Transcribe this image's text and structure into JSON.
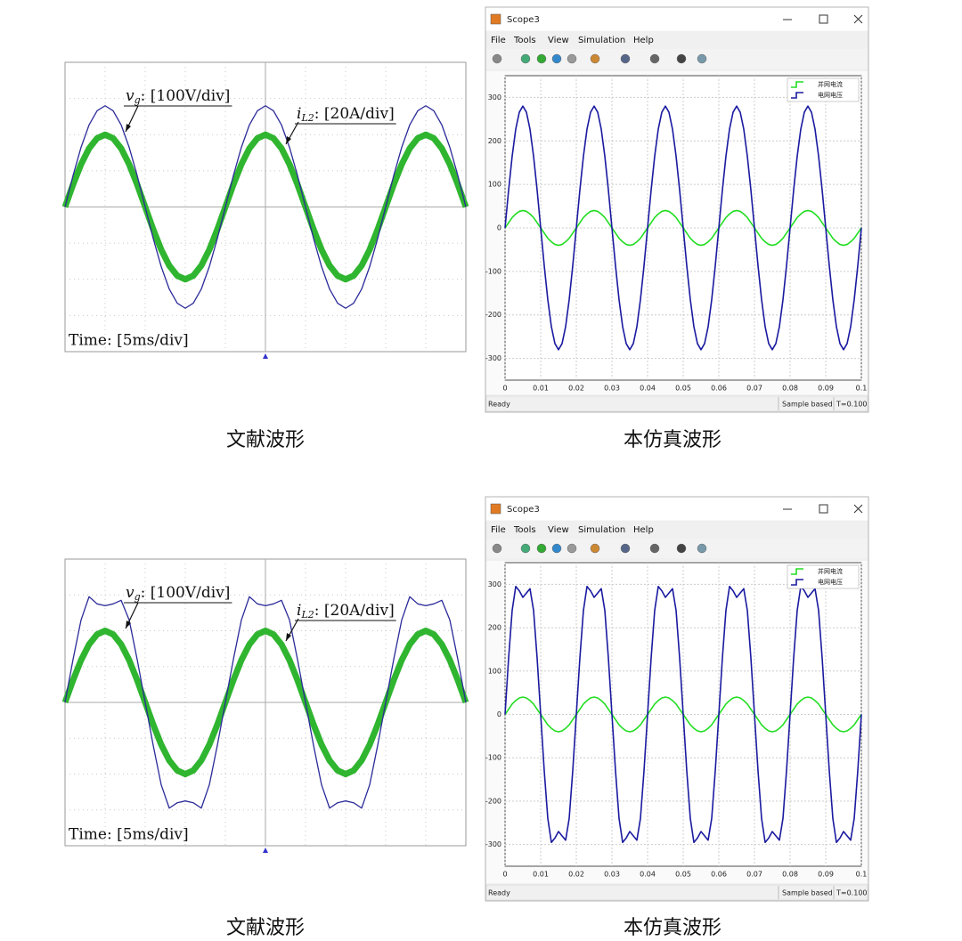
{
  "captions": [
    "文献波形",
    "本仿真波形",
    "文献波形",
    "本仿真波形"
  ],
  "chart_data": [
    {
      "type": "line",
      "annotations": [
        {
          "var": "v",
          "sub": "g",
          "text": ": [100V/div]"
        },
        {
          "var": "i",
          "sub": "L2",
          "text": ": [20A/div]"
        }
      ],
      "time_label": "Time: [5ms/div]",
      "x": [
        0,
        0.2,
        0.4,
        0.6,
        0.8,
        1,
        1.2,
        1.4,
        1.6,
        1.8,
        2,
        2.2,
        2.4,
        2.6,
        2.8,
        3,
        3.2,
        3.4,
        3.6,
        3.8,
        4,
        4.2,
        4.4,
        4.6,
        4.8,
        5,
        5.2,
        5.4,
        5.6,
        5.8,
        6,
        6.2,
        6.4,
        6.6,
        6.8,
        7,
        7.2,
        7.4,
        7.6,
        7.8,
        8,
        8.2,
        8.4,
        8.6,
        8.8,
        9,
        9.2,
        9.4,
        9.6,
        9.8,
        10
      ],
      "xlim": [
        0,
        10
      ],
      "ylim": [
        -4,
        4
      ],
      "grid": true,
      "series": [
        {
          "color": "#2b2b9a",
          "values": [
            0,
            0.87,
            1.65,
            2.27,
            2.66,
            2.8,
            2.66,
            2.27,
            1.65,
            0.87,
            0,
            -0.87,
            -1.65,
            -2.27,
            -2.66,
            -2.8,
            -2.66,
            -2.27,
            -1.65,
            -0.87,
            0,
            0.87,
            1.65,
            2.27,
            2.66,
            2.8,
            2.66,
            2.27,
            1.65,
            0.87,
            0,
            -0.87,
            -1.65,
            -2.27,
            -2.66,
            -2.8,
            -2.66,
            -2.27,
            -1.65,
            -0.87,
            0,
            0.87,
            1.65,
            2.27,
            2.66,
            2.8,
            2.66,
            2.27,
            1.65,
            0.87,
            0
          ]
        },
        {
          "color": "#2fb52f",
          "values": [
            0,
            0.62,
            1.18,
            1.62,
            1.9,
            2,
            1.9,
            1.62,
            1.18,
            0.62,
            0,
            -0.62,
            -1.18,
            -1.62,
            -1.9,
            -2,
            -1.9,
            -1.62,
            -1.18,
            -0.62,
            0,
            0.62,
            1.18,
            1.62,
            1.9,
            2,
            1.9,
            1.62,
            1.18,
            0.62,
            0,
            -0.62,
            -1.18,
            -1.62,
            -1.9,
            -2,
            -1.9,
            -1.62,
            -1.18,
            -0.62,
            0,
            0.62,
            1.18,
            1.62,
            1.9,
            2,
            1.9,
            1.62,
            1.18,
            0.62,
            0
          ]
        }
      ]
    },
    {
      "type": "line",
      "window": {
        "title": "Scope3",
        "menu": [
          "File",
          "Tools",
          "View",
          "Simulation",
          "Help"
        ],
        "status": "Ready",
        "mode": "Sample based",
        "time": "T=0.100"
      },
      "x": [
        0,
        0.001,
        0.002,
        0.003,
        0.004,
        0.005,
        0.006,
        0.007,
        0.008,
        0.009,
        0.01,
        0.011,
        0.012,
        0.013,
        0.014,
        0.015,
        0.016,
        0.017,
        0.018,
        0.019,
        0.02,
        0.021,
        0.022,
        0.023,
        0.024,
        0.025,
        0.026,
        0.027,
        0.028,
        0.029,
        0.03,
        0.031,
        0.032,
        0.033,
        0.034,
        0.035,
        0.036,
        0.037,
        0.038,
        0.039,
        0.04,
        0.041,
        0.042,
        0.043,
        0.044,
        0.045,
        0.046,
        0.047,
        0.048,
        0.049,
        0.05,
        0.051,
        0.052,
        0.053,
        0.054,
        0.055,
        0.056,
        0.057,
        0.058,
        0.059,
        0.06,
        0.061,
        0.062,
        0.063,
        0.064,
        0.065,
        0.066,
        0.067,
        0.068,
        0.069,
        0.07,
        0.071,
        0.072,
        0.073,
        0.074,
        0.075,
        0.076,
        0.077,
        0.078,
        0.079,
        0.08,
        0.081,
        0.082,
        0.083,
        0.084,
        0.085,
        0.086,
        0.087,
        0.088,
        0.089,
        0.09,
        0.091,
        0.092,
        0.093,
        0.094,
        0.095,
        0.096,
        0.097,
        0.098,
        0.099,
        0.1
      ],
      "xlim": [
        0,
        0.1
      ],
      "ylim": [
        -350,
        350
      ],
      "xticks": [
        0,
        0.01,
        0.02,
        0.03,
        0.04,
        0.05,
        0.06,
        0.07,
        0.08,
        0.09,
        0.1
      ],
      "yticks": [
        -300,
        -200,
        -100,
        0,
        100,
        200,
        300
      ],
      "grid": true,
      "legend": "upper right",
      "series": [
        {
          "name": "并网电流",
          "color": "#22dd22",
          "values": [
            0,
            12,
            24,
            32,
            38,
            40,
            38,
            32,
            24,
            12,
            0,
            -12,
            -24,
            -32,
            -38,
            -40,
            -38,
            -32,
            -24,
            -12,
            0,
            12,
            24,
            32,
            38,
            40,
            38,
            32,
            24,
            12,
            0,
            -12,
            -24,
            -32,
            -38,
            -40,
            -38,
            -32,
            -24,
            -12,
            0,
            12,
            24,
            32,
            38,
            40,
            38,
            32,
            24,
            12,
            0,
            -12,
            -24,
            -32,
            -38,
            -40,
            -38,
            -32,
            -24,
            -12,
            0,
            12,
            24,
            32,
            38,
            40,
            38,
            32,
            24,
            12,
            0,
            -12,
            -24,
            -32,
            -38,
            -40,
            -38,
            -32,
            -24,
            -12,
            0,
            12,
            24,
            32,
            38,
            40,
            38,
            32,
            24,
            12,
            0,
            -12,
            -24,
            -32,
            -38,
            -40,
            -38,
            -32,
            -24,
            -12,
            0
          ]
        },
        {
          "name": "电网电压",
          "color": "#1a1aa0",
          "values": [
            0,
            87,
            165,
            227,
            266,
            280,
            266,
            227,
            165,
            87,
            0,
            -87,
            -165,
            -227,
            -266,
            -280,
            -266,
            -227,
            -165,
            -87,
            0,
            87,
            165,
            227,
            266,
            280,
            266,
            227,
            165,
            87,
            0,
            -87,
            -165,
            -227,
            -266,
            -280,
            -266,
            -227,
            -165,
            -87,
            0,
            87,
            165,
            227,
            266,
            280,
            266,
            227,
            165,
            87,
            0,
            -87,
            -165,
            -227,
            -266,
            -280,
            -266,
            -227,
            -165,
            -87,
            0,
            87,
            165,
            227,
            266,
            280,
            266,
            227,
            165,
            87,
            0,
            -87,
            -165,
            -227,
            -266,
            -280,
            -266,
            -227,
            -165,
            -87,
            0,
            87,
            165,
            227,
            266,
            280,
            266,
            227,
            165,
            87,
            0,
            -87,
            -165,
            -227,
            -266,
            -280,
            -266,
            -227,
            -165,
            -87,
            0
          ]
        }
      ]
    },
    {
      "type": "line",
      "annotations": [
        {
          "var": "v",
          "sub": "g",
          "text": ": [100V/div]"
        },
        {
          "var": "i",
          "sub": "L2",
          "text": ": [20A/div]"
        }
      ],
      "time_label": "Time: [5ms/div]",
      "x": [
        0,
        0.2,
        0.4,
        0.6,
        0.8,
        1,
        1.2,
        1.4,
        1.6,
        1.8,
        2,
        2.2,
        2.4,
        2.6,
        2.8,
        3,
        3.2,
        3.4,
        3.6,
        3.8,
        4,
        4.2,
        4.4,
        4.6,
        4.8,
        5,
        5.2,
        5.4,
        5.6,
        5.8,
        6,
        6.2,
        6.4,
        6.6,
        6.8,
        7,
        7.2,
        7.4,
        7.6,
        7.8,
        8,
        8.2,
        8.4,
        8.6,
        8.8,
        9,
        9.2,
        9.4,
        9.6,
        9.8,
        10
      ],
      "xlim": [
        0,
        10
      ],
      "ylim": [
        -4,
        4
      ],
      "grid": true,
      "series": [
        {
          "color": "#2b2b9a",
          "values": [
            0,
            1.2,
            2.3,
            2.95,
            2.75,
            2.7,
            2.75,
            2.85,
            2.3,
            1.2,
            0,
            -1.2,
            -2.3,
            -2.95,
            -2.8,
            -2.75,
            -2.8,
            -2.95,
            -2.3,
            -1.2,
            0,
            1.2,
            2.3,
            2.95,
            2.75,
            2.7,
            2.75,
            2.85,
            2.3,
            1.2,
            0,
            -1.2,
            -2.3,
            -2.95,
            -2.8,
            -2.75,
            -2.8,
            -2.95,
            -2.3,
            -1.2,
            0,
            1.2,
            2.3,
            2.95,
            2.75,
            2.7,
            2.75,
            2.85,
            2.3,
            1.2,
            0
          ]
        },
        {
          "color": "#2fb52f",
          "values": [
            0,
            0.62,
            1.18,
            1.62,
            1.9,
            2,
            1.9,
            1.62,
            1.18,
            0.62,
            0,
            -0.62,
            -1.18,
            -1.62,
            -1.9,
            -2,
            -1.9,
            -1.62,
            -1.18,
            -0.62,
            0,
            0.62,
            1.18,
            1.62,
            1.9,
            2,
            1.9,
            1.62,
            1.18,
            0.62,
            0,
            -0.62,
            -1.18,
            -1.62,
            -1.9,
            -2,
            -1.9,
            -1.62,
            -1.18,
            -0.62,
            0,
            0.62,
            1.18,
            1.62,
            1.9,
            2,
            1.9,
            1.62,
            1.18,
            0.62,
            0
          ]
        }
      ]
    },
    {
      "type": "line",
      "window": {
        "title": "Scope3",
        "menu": [
          "File",
          "Tools",
          "View",
          "Simulation",
          "Help"
        ],
        "status": "Ready",
        "mode": "Sample based",
        "time": "T=0.100"
      },
      "x": [
        0,
        0.001,
        0.002,
        0.003,
        0.004,
        0.005,
        0.006,
        0.007,
        0.008,
        0.009,
        0.01,
        0.011,
        0.012,
        0.013,
        0.014,
        0.015,
        0.016,
        0.017,
        0.018,
        0.019,
        0.02,
        0.021,
        0.022,
        0.023,
        0.024,
        0.025,
        0.026,
        0.027,
        0.028,
        0.029,
        0.03,
        0.031,
        0.032,
        0.033,
        0.034,
        0.035,
        0.036,
        0.037,
        0.038,
        0.039,
        0.04,
        0.041,
        0.042,
        0.043,
        0.044,
        0.045,
        0.046,
        0.047,
        0.048,
        0.049,
        0.05,
        0.051,
        0.052,
        0.053,
        0.054,
        0.055,
        0.056,
        0.057,
        0.058,
        0.059,
        0.06,
        0.061,
        0.062,
        0.063,
        0.064,
        0.065,
        0.066,
        0.067,
        0.068,
        0.069,
        0.07,
        0.071,
        0.072,
        0.073,
        0.074,
        0.075,
        0.076,
        0.077,
        0.078,
        0.079,
        0.08,
        0.081,
        0.082,
        0.083,
        0.084,
        0.085,
        0.086,
        0.087,
        0.088,
        0.089,
        0.09,
        0.091,
        0.092,
        0.093,
        0.094,
        0.095,
        0.096,
        0.097,
        0.098,
        0.099,
        0.1
      ],
      "xlim": [
        0,
        0.1
      ],
      "ylim": [
        -350,
        350
      ],
      "xticks": [
        0,
        0.01,
        0.02,
        0.03,
        0.04,
        0.05,
        0.06,
        0.07,
        0.08,
        0.09,
        0.1
      ],
      "yticks": [
        -300,
        -200,
        -100,
        0,
        100,
        200,
        300
      ],
      "grid": true,
      "legend": "upper right",
      "series": [
        {
          "name": "并网电流",
          "color": "#22dd22",
          "values": [
            0,
            12,
            24,
            32,
            38,
            40,
            38,
            32,
            24,
            12,
            0,
            -12,
            -24,
            -32,
            -38,
            -40,
            -38,
            -32,
            -24,
            -12,
            0,
            12,
            24,
            32,
            38,
            40,
            38,
            32,
            24,
            12,
            0,
            -12,
            -24,
            -32,
            -38,
            -40,
            -38,
            -32,
            -24,
            -12,
            0,
            12,
            24,
            32,
            38,
            40,
            38,
            32,
            24,
            12,
            0,
            -12,
            -24,
            -32,
            -38,
            -40,
            -38,
            -32,
            -24,
            -12,
            0,
            12,
            24,
            32,
            38,
            40,
            38,
            32,
            24,
            12,
            0,
            -12,
            -24,
            -32,
            -38,
            -40,
            -38,
            -32,
            -24,
            -12,
            0,
            12,
            24,
            32,
            38,
            40,
            38,
            32,
            24,
            12,
            0,
            -12,
            -24,
            -32,
            -38,
            -40,
            -38,
            -32,
            -24,
            -12,
            0
          ]
        },
        {
          "name": "电网电压",
          "color": "#1a1aa0",
          "values": [
            0,
            130,
            240,
            295,
            285,
            270,
            280,
            290,
            240,
            130,
            0,
            -130,
            -240,
            -295,
            -285,
            -270,
            -280,
            -290,
            -240,
            -130,
            0,
            130,
            240,
            295,
            285,
            270,
            280,
            290,
            240,
            130,
            0,
            -130,
            -240,
            -295,
            -285,
            -270,
            -280,
            -290,
            -240,
            -130,
            0,
            130,
            240,
            295,
            285,
            270,
            280,
            290,
            240,
            130,
            0,
            -130,
            -240,
            -295,
            -285,
            -270,
            -280,
            -290,
            -240,
            -130,
            0,
            130,
            240,
            295,
            285,
            270,
            280,
            290,
            240,
            130,
            0,
            -130,
            -240,
            -295,
            -285,
            -270,
            -280,
            -290,
            -240,
            -130,
            0,
            130,
            240,
            295,
            285,
            270,
            280,
            290,
            240,
            130,
            0,
            -130,
            -240,
            -295,
            -285,
            -270,
            -280,
            -290,
            -240,
            -130,
            0
          ]
        }
      ]
    }
  ]
}
